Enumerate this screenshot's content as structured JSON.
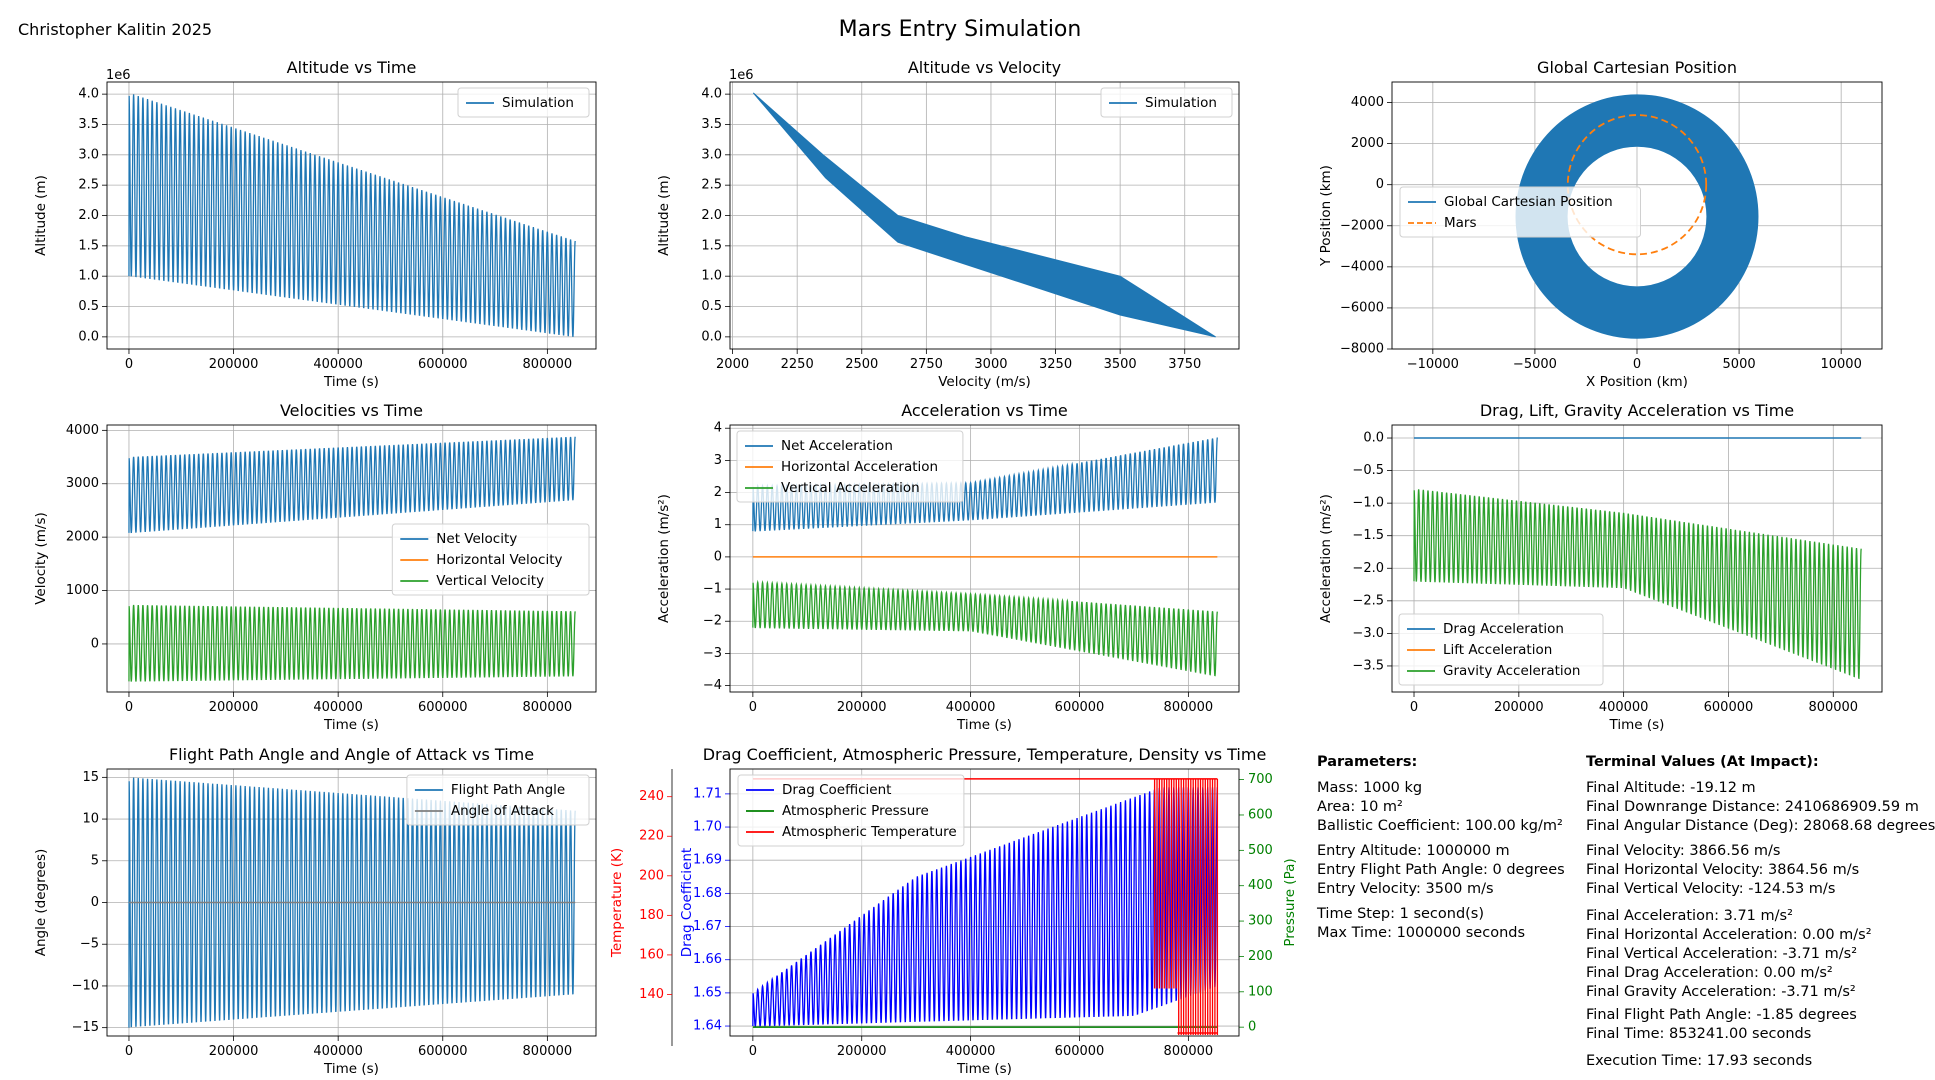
{
  "author": "Christopher Kalitin 2025",
  "suptitle": "Mars Entry Simulation",
  "colors": {
    "blue": "#1f77b4",
    "orange": "#ff7f0e",
    "green": "#2ca02c",
    "red": "#ff0000",
    "drag": "#0000ff",
    "grid": "#b0b0b0"
  },
  "chart_data": [
    {
      "id": "alt_time",
      "type": "line",
      "title": "Altitude vs Time",
      "xlabel": "Time (s)",
      "ylabel": "Altitude (m)",
      "ylabel_multiplier": "1e6",
      "xlim": [
        -42000,
        893000
      ],
      "ylim": [
        -0.2,
        4.2
      ],
      "xticks": [
        0,
        200000,
        400000,
        600000,
        800000
      ],
      "xtick_labels": [
        "0",
        "200000",
        "400000",
        "600000",
        "800000"
      ],
      "yticks": [
        0,
        0.5,
        1,
        1.5,
        2,
        2.5,
        3,
        3.5,
        4
      ],
      "ytick_labels": [
        "0.0",
        "0.5",
        "1.0",
        "1.5",
        "2.0",
        "2.5",
        "3.0",
        "3.5",
        "4.0"
      ],
      "legend": "upper right",
      "series": [
        {
          "name": "Simulation",
          "color": "#1f77b4",
          "kind": "oscillation",
          "periods": 96,
          "t_end": 853241,
          "upper": [
            [
              0,
              4.02
            ],
            [
              853241,
              1.58
            ]
          ],
          "lower": [
            [
              0,
              1.0
            ],
            [
              853241,
              0.0
            ]
          ]
        }
      ]
    },
    {
      "id": "alt_vel",
      "type": "area",
      "title": "Altitude vs Velocity",
      "xlabel": "Velocity (m/s)",
      "ylabel": "Altitude (m)",
      "ylabel_multiplier": "1e6",
      "xlim": [
        1990,
        3960
      ],
      "ylim": [
        -0.2,
        4.2
      ],
      "xticks": [
        2000,
        2250,
        2500,
        2750,
        3000,
        3250,
        3500,
        3750
      ],
      "xtick_labels": [
        "2000",
        "2250",
        "2500",
        "2750",
        "3000",
        "3250",
        "3500",
        "3750"
      ],
      "yticks": [
        0,
        0.5,
        1,
        1.5,
        2,
        2.5,
        3,
        3.5,
        4
      ],
      "ytick_labels": [
        "0.0",
        "0.5",
        "1.0",
        "1.5",
        "2.0",
        "2.5",
        "3.0",
        "3.5",
        "4.0"
      ],
      "legend": "upper right",
      "series": [
        {
          "name": "Simulation",
          "color": "#1f77b4",
          "polygon": [
            [
              2080,
              4.02
            ],
            [
              2350,
              3.0
            ],
            [
              2640,
              2.0
            ],
            [
              2900,
              1.65
            ],
            [
              3500,
              1.0
            ],
            [
              3870,
              0.0
            ],
            [
              3500,
              0.36
            ],
            [
              2640,
              1.56
            ],
            [
              2360,
              2.62
            ],
            [
              2080,
              4.02
            ]
          ]
        }
      ]
    },
    {
      "id": "global_pos",
      "type": "line",
      "title": "Global Cartesian Position",
      "xlabel": "X Position (km)",
      "ylabel": "Y Position (km)",
      "xlim": [
        -12000,
        12000
      ],
      "ylim": [
        -8000,
        5000
      ],
      "xticks": [
        -10000,
        -5000,
        0,
        5000,
        10000
      ],
      "xtick_labels": [
        "−10000",
        "−5000",
        "0",
        "5000",
        "10000"
      ],
      "yticks": [
        -8000,
        -6000,
        -4000,
        -2000,
        0,
        2000,
        4000
      ],
      "ytick_labels": [
        "−8000",
        "−6000",
        "−4000",
        "−2000",
        "0",
        "2000",
        "4000"
      ],
      "legend": "center left",
      "series": [
        {
          "name": "Global Cartesian Position",
          "color": "#1f77b4",
          "kind": "ring",
          "center": [
            0,
            -1550
          ],
          "r_inner": 3400,
          "r_outer": 5950
        },
        {
          "name": "Mars",
          "color": "#ff7f0e",
          "kind": "circle",
          "dashed": true,
          "center": [
            0,
            0
          ],
          "r": 3390
        }
      ]
    },
    {
      "id": "vel_time",
      "type": "line",
      "title": "Velocities vs Time",
      "xlabel": "Time (s)",
      "ylabel": "Velocity (m/s)",
      "xlim": [
        -42000,
        893000
      ],
      "ylim": [
        -900,
        4100
      ],
      "xticks": [
        0,
        200000,
        400000,
        600000,
        800000
      ],
      "xtick_labels": [
        "0",
        "200000",
        "400000",
        "600000",
        "800000"
      ],
      "yticks": [
        0,
        1000,
        2000,
        3000,
        4000
      ],
      "ytick_labels": [
        "0",
        "1000",
        "2000",
        "3000",
        "4000"
      ],
      "legend": "center right",
      "series": [
        {
          "name": "Net Velocity",
          "color": "#1f77b4",
          "kind": "oscillation",
          "periods": 96,
          "t_end": 853241,
          "upper": [
            [
              0,
              3500
            ],
            [
              853241,
              3880
            ]
          ],
          "lower": [
            [
              0,
              2080
            ],
            [
              853241,
              2700
            ]
          ]
        },
        {
          "name": "Horizontal Velocity",
          "color": "#ff7f0e",
          "kind": "hidden"
        },
        {
          "name": "Vertical Velocity",
          "color": "#2ca02c",
          "kind": "oscillation",
          "periods": 96,
          "t_end": 853241,
          "upper": [
            [
              0,
              730
            ],
            [
              853241,
              610
            ]
          ],
          "lower": [
            [
              0,
              -700
            ],
            [
              853241,
              -600
            ]
          ]
        }
      ]
    },
    {
      "id": "acc_time",
      "type": "line",
      "title": "Acceleration vs Time",
      "xlabel": "Time (s)",
      "ylabel": "Acceleration (m/s²)",
      "xlim": [
        -42000,
        893000
      ],
      "ylim": [
        -4.2,
        4.1
      ],
      "xticks": [
        0,
        200000,
        400000,
        600000,
        800000
      ],
      "xtick_labels": [
        "0",
        "200000",
        "400000",
        "600000",
        "800000"
      ],
      "yticks": [
        -4,
        -3,
        -2,
        -1,
        0,
        1,
        2,
        3,
        4
      ],
      "ytick_labels": [
        "−4",
        "−3",
        "−2",
        "−1",
        "0",
        "1",
        "2",
        "3",
        "4"
      ],
      "legend": "upper left",
      "series": [
        {
          "name": "Net Acceleration",
          "color": "#1f77b4",
          "kind": "oscillation",
          "periods": 96,
          "t_end": 853241,
          "upper": [
            [
              0,
              2.2
            ],
            [
              400000,
              2.3
            ],
            [
              853241,
              3.71
            ]
          ],
          "lower": [
            [
              0,
              0.8
            ],
            [
              400000,
              1.15
            ],
            [
              853241,
              1.7
            ]
          ]
        },
        {
          "name": "Horizontal Acceleration",
          "color": "#ff7f0e",
          "kind": "const",
          "value": 0,
          "t_end": 853241
        },
        {
          "name": "Vertical Acceleration",
          "color": "#2ca02c",
          "kind": "oscillation",
          "periods": 96,
          "t_end": 853241,
          "upper": [
            [
              0,
              -0.78
            ],
            [
              400000,
              -1.15
            ],
            [
              853241,
              -1.7
            ]
          ],
          "lower": [
            [
              0,
              -2.2
            ],
            [
              400000,
              -2.3
            ],
            [
              853241,
              -3.71
            ]
          ]
        }
      ]
    },
    {
      "id": "forces_time",
      "type": "line",
      "title": "Drag, Lift, Gravity Acceleration vs Time",
      "xlabel": "Time (s)",
      "ylabel": "Acceleration (m/s²)",
      "xlim": [
        -42000,
        893000
      ],
      "ylim": [
        -3.9,
        0.2
      ],
      "xticks": [
        0,
        200000,
        400000,
        600000,
        800000
      ],
      "xtick_labels": [
        "0",
        "200000",
        "400000",
        "600000",
        "800000"
      ],
      "yticks": [
        -3.5,
        -3,
        -2.5,
        -2,
        -1.5,
        -1,
        -0.5,
        0
      ],
      "ytick_labels": [
        "−3.5",
        "−3.0",
        "−2.5",
        "−2.0",
        "−1.5",
        "−1.0",
        "−0.5",
        "0.0"
      ],
      "legend": "lower left",
      "series": [
        {
          "name": "Drag Acceleration",
          "color": "#1f77b4",
          "kind": "const",
          "value": 0,
          "t_end": 853241
        },
        {
          "name": "Lift Acceleration",
          "color": "#ff7f0e",
          "kind": "hidden"
        },
        {
          "name": "Gravity Acceleration",
          "color": "#2ca02c",
          "kind": "oscillation",
          "periods": 96,
          "t_end": 853241,
          "upper": [
            [
              0,
              -0.78
            ],
            [
              400000,
              -1.15
            ],
            [
              853241,
              -1.7
            ]
          ],
          "lower": [
            [
              0,
              -2.2
            ],
            [
              400000,
              -2.3
            ],
            [
              853241,
              -3.71
            ]
          ]
        }
      ]
    },
    {
      "id": "angles_time",
      "type": "line",
      "title": "Flight Path Angle and Angle of Attack vs Time",
      "xlabel": "Time (s)",
      "ylabel": "Angle (degrees)",
      "xlim": [
        -42000,
        893000
      ],
      "ylim": [
        -16,
        16
      ],
      "xticks": [
        0,
        200000,
        400000,
        600000,
        800000
      ],
      "xtick_labels": [
        "0",
        "200000",
        "400000",
        "600000",
        "800000"
      ],
      "yticks": [
        -15,
        -10,
        -5,
        0,
        5,
        10,
        15
      ],
      "ytick_labels": [
        "−15",
        "−10",
        "−5",
        "0",
        "5",
        "10",
        "15"
      ],
      "legend": "upper right",
      "series": [
        {
          "name": "Flight Path Angle",
          "color": "#1f77b4",
          "kind": "oscillation",
          "periods": 96,
          "t_end": 853241,
          "upper": [
            [
              0,
              15
            ],
            [
              853241,
              11
            ]
          ],
          "lower": [
            [
              0,
              -15
            ],
            [
              853241,
              -11
            ]
          ]
        },
        {
          "name": "Angle of Attack",
          "color": "#7f7f7f",
          "kind": "const",
          "value": 0,
          "t_end": 853241
        }
      ]
    },
    {
      "id": "atmos_time",
      "type": "line",
      "title": "Drag Coefficient, Atmospheric Pressure, Temperature, Density vs Time",
      "xlabel": "Time (s)",
      "ylabel": "Drag Coefficient",
      "xlim": [
        -42000,
        893000
      ],
      "ylim": [
        1.637,
        1.7175
      ],
      "xticks": [
        0,
        200000,
        400000,
        600000,
        800000
      ],
      "xtick_labels": [
        "0",
        "200000",
        "400000",
        "600000",
        "800000"
      ],
      "yticks": [
        1.64,
        1.65,
        1.66,
        1.67,
        1.68,
        1.69,
        1.7,
        1.71
      ],
      "ytick_labels": [
        "1.64",
        "1.65",
        "1.66",
        "1.67",
        "1.68",
        "1.69",
        "1.70",
        "1.71"
      ],
      "ylabel2": "Pressure (Pa)",
      "ylim2": [
        -25,
        730
      ],
      "yticks2": [
        0,
        100,
        200,
        300,
        400,
        500,
        600,
        700
      ],
      "ytick_labels2": [
        "0",
        "100",
        "200",
        "300",
        "400",
        "500",
        "600",
        "700"
      ],
      "ylabel3": "Temperature (K)",
      "ylim3": [
        119,
        254
      ],
      "yticks3": [
        140,
        160,
        180,
        200,
        220,
        240
      ],
      "ytick_labels3": [
        "140",
        "160",
        "180",
        "200",
        "220",
        "240"
      ],
      "legend": "upper left",
      "series": [
        {
          "name": "Drag Coefficient",
          "color": "#0000ff",
          "kind": "oscillation",
          "periods": 96,
          "t_end": 853241,
          "upper": [
            [
              0,
              1.65
            ],
            [
              300000,
              1.685
            ],
            [
              750000,
              1.712
            ]
          ],
          "lower": [
            [
              0,
              1.64
            ],
            [
              700000,
              1.643
            ],
            [
              853241,
              1.652
            ]
          ]
        },
        {
          "name": "Atmospheric Pressure",
          "color": "#008000",
          "kind": "const",
          "value": 0,
          "t_end": 853241
        },
        {
          "name": "Atmospheric Temperature",
          "color": "#ff0000",
          "kind": "const",
          "value": 249,
          "t_end": 853241
        }
      ]
    }
  ],
  "parameters": {
    "heading": "Parameters:",
    "groups": [
      [
        "Mass: 1000 kg",
        "Area: 10 m²",
        "Ballistic Coefficient: 100.00 kg/m²"
      ],
      [
        "Entry Altitude: 1000000 m",
        "Entry Flight Path Angle: 0 degrees",
        "Entry Velocity: 3500 m/s"
      ],
      [
        "Time Step: 1 second(s)",
        "Max Time: 1000000 seconds"
      ]
    ]
  },
  "terminal": {
    "heading": "Terminal Values (At Impact):",
    "groups": [
      [
        "Final Altitude: -19.12 m",
        "Final Downrange Distance: 2410686909.59 m",
        "Final Angular Distance (Deg): 28068.68 degrees"
      ],
      [
        "Final Velocity: 3866.56 m/s",
        "Final Horizontal Velocity: 3864.56 m/s",
        "Final Vertical Velocity: -124.53 m/s"
      ],
      [
        "Final Acceleration: 3.71 m/s²",
        "Final Horizontal Acceleration: 0.00 m/s²",
        "Final Vertical Acceleration: -3.71 m/s²",
        "Final Drag Acceleration: 0.00 m/s²",
        "Final Gravity Acceleration: -3.71 m/s²"
      ],
      [
        "Final Flight Path Angle: -1.85 degrees",
        "Final Time: 853241.00 seconds"
      ],
      [
        "Execution Time: 17.93 seconds"
      ]
    ]
  }
}
